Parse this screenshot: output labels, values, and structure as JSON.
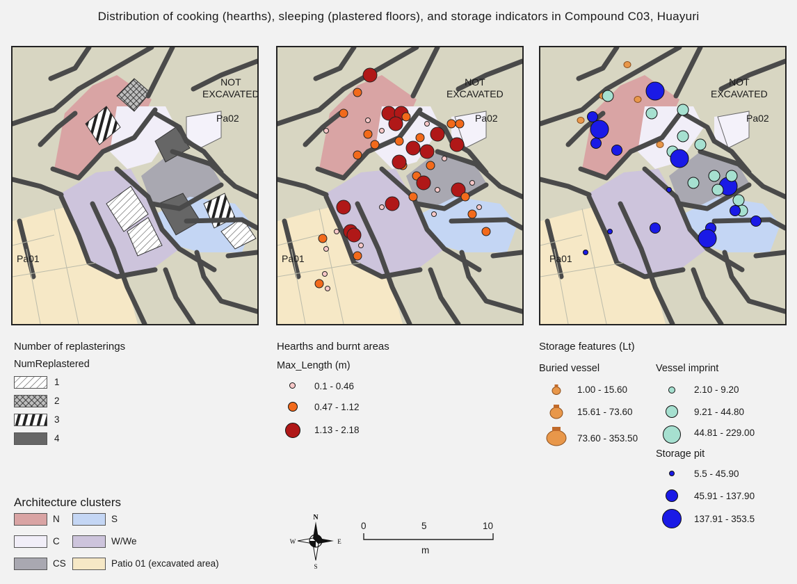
{
  "title": "Distribution of cooking (hearths), sleeping (plastered floors), and storage indicators in Compound C03, Huayuri",
  "map_labels": {
    "not_excavated": [
      "NOT",
      "EXCAVATED"
    ],
    "patio_1": "Pa01",
    "patio_2": "Pa02"
  },
  "colors": {
    "N": "#d9a4a4",
    "C": "#f1eef8",
    "CS": "#a9a8b1",
    "S": "#c4d6f4",
    "W_We": "#cdc4dc",
    "Patio01": "#f6e8c6",
    "background": "#d8d6c2",
    "walls": "#4a4a4a",
    "hearth_small": "#f7c8c8",
    "hearth_medium": "#f26a1b",
    "hearth_large": "#b01818",
    "vessel_imprint": "#a6e0d0",
    "storage_pit": "#1a1ae6",
    "buried_vessel": "#e8974a"
  },
  "legend_replaster": {
    "title": "Number of replasterings",
    "field": "NumReplastered",
    "items": [
      {
        "label": "1",
        "pattern": "diagonal-light"
      },
      {
        "label": "2",
        "pattern": "crosshatch-dark"
      },
      {
        "label": "3",
        "pattern": "vertical-bars"
      },
      {
        "label": "4",
        "pattern": "solid-dark"
      }
    ]
  },
  "legend_hearths": {
    "title": "Hearths and burnt areas",
    "field": "Max_Length (m)",
    "items": [
      {
        "label": "0.1 - 0.46"
      },
      {
        "label": "0.47 - 1.12"
      },
      {
        "label": "1.13 - 2.18"
      }
    ]
  },
  "legend_storage": {
    "title": "Storage features (Lt)",
    "buried_vessel": {
      "title": "Buried vessel",
      "items": [
        "1.00 - 15.60",
        "15.61 - 73.60",
        "73.60 - 353.50"
      ]
    },
    "vessel_imprint": {
      "title": "Vessel imprint",
      "items": [
        "2.10 - 9.20",
        "9.21 - 44.80",
        "44.81 - 229.00"
      ]
    },
    "storage_pit": {
      "title": "Storage pit",
      "items": [
        "5.5 - 45.90",
        "45.91 - 137.90",
        "137.91 - 353.5"
      ]
    }
  },
  "legend_clusters": {
    "title": "Architecture clusters",
    "items": [
      {
        "label": "N",
        "color_key": "N"
      },
      {
        "label": "S",
        "color_key": "S"
      },
      {
        "label": "C",
        "color_key": "C"
      },
      {
        "label": "W/We",
        "color_key": "W_We"
      },
      {
        "label": "CS",
        "color_key": "CS"
      },
      {
        "label": "Patio 01 (excavated area)",
        "color_key": "Patio01"
      }
    ]
  },
  "north_arrow": {
    "n": "N",
    "s": "S",
    "e": "E",
    "w": "W"
  },
  "scale_bar": {
    "ticks": [
      "0",
      "5",
      "10"
    ],
    "unit": "m"
  }
}
